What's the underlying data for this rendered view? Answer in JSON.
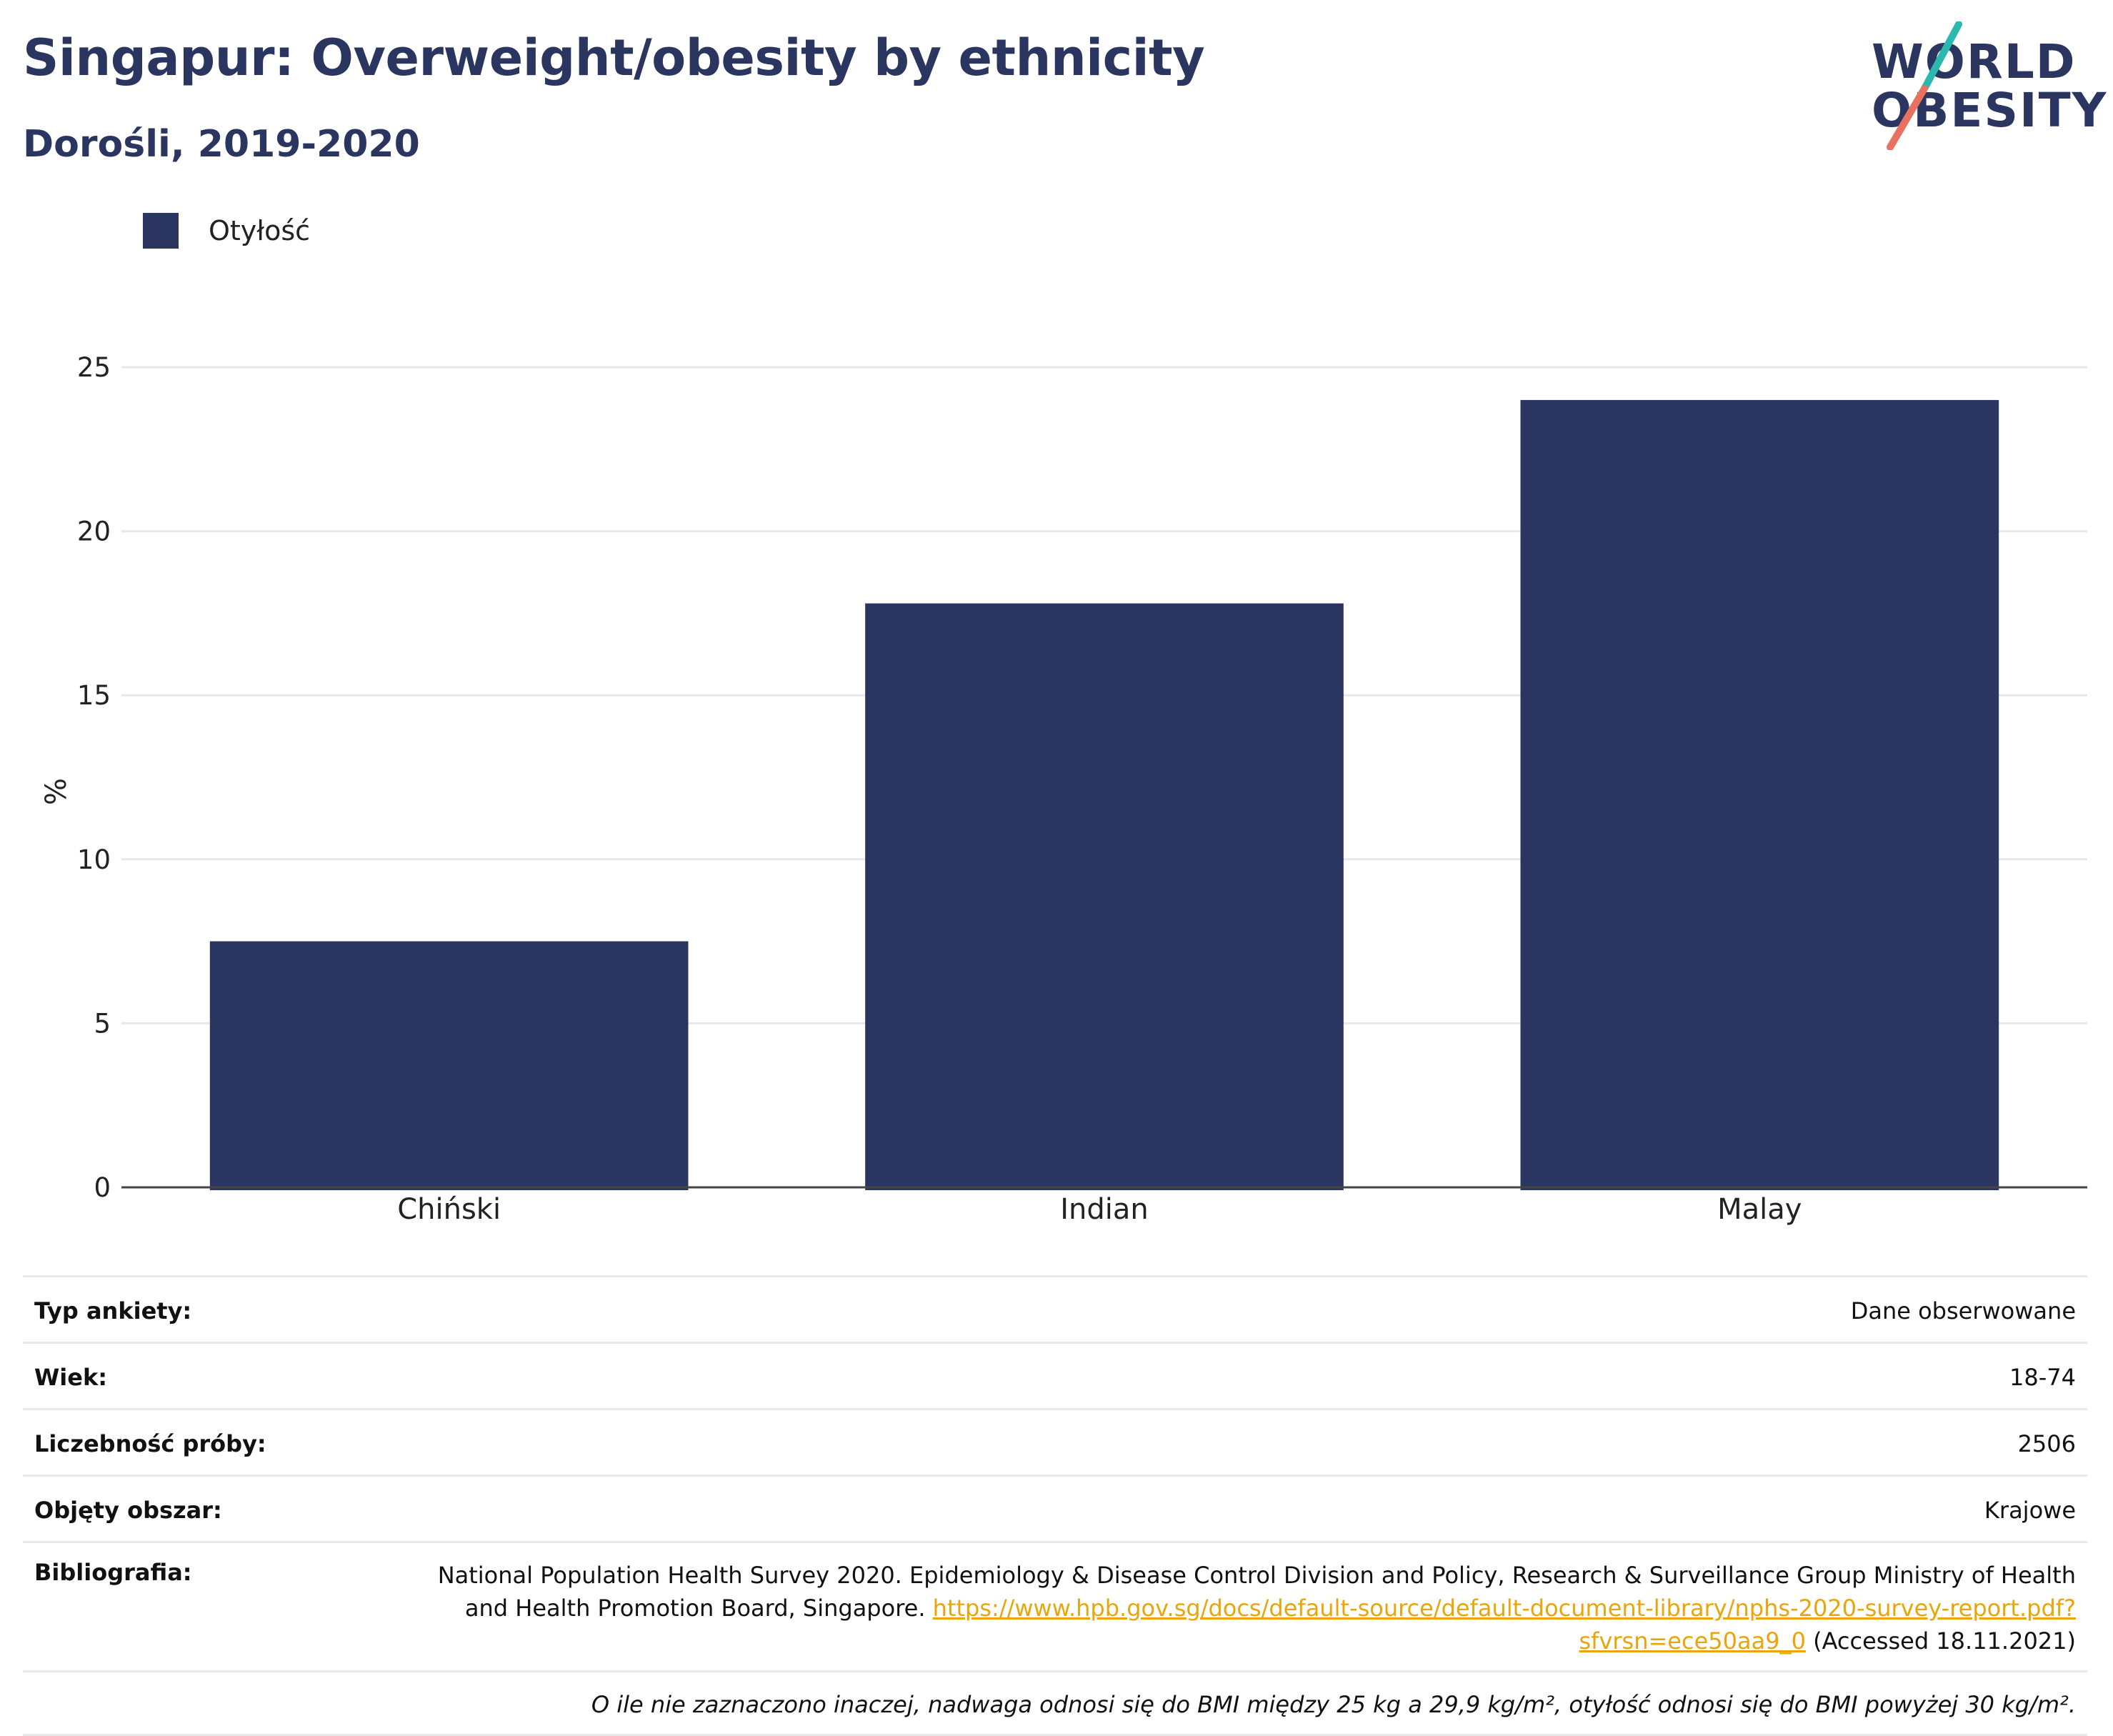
{
  "header": {
    "title": "Singapur: Overweight/obesity by ethnicity",
    "subtitle": "Dorośli, 2019-2020"
  },
  "logo": {
    "line1": "WORLD",
    "line2": "OBESITY",
    "colors": {
      "text": "#2a3560",
      "slash_top": "#2bb8b0",
      "slash_bottom": "#e8715f"
    }
  },
  "chart_data": {
    "type": "bar",
    "title": "Singapur: Overweight/obesity by ethnicity",
    "subtitle": "Dorośli, 2019-2020",
    "categories": [
      "Chiński",
      "Indian",
      "Malay"
    ],
    "series": [
      {
        "name": "Otyłość",
        "values": [
          7.5,
          17.8,
          24.0
        ],
        "color": "#2a3560"
      }
    ],
    "xlabel": "",
    "ylabel": "%",
    "ylim": [
      0,
      25
    ],
    "yticks": [
      0,
      5,
      10,
      15,
      20,
      25
    ],
    "grid": true,
    "legend": "top-left"
  },
  "info": {
    "survey_type": {
      "label": "Typ ankiety:",
      "value": "Dane obserwowane"
    },
    "age": {
      "label": "Wiek:",
      "value": "18-74"
    },
    "sample_size": {
      "label": "Liczebność próby:",
      "value": "2506"
    },
    "area": {
      "label": "Objęty obszar:",
      "value": "Krajowe"
    },
    "bibliography": {
      "label": "Bibliografia:",
      "text_before": "National Population Health Survey 2020. Epidemiology & Disease Control Division and Policy, Research & Surveillance Group Ministry of Health and Health Promotion Board, Singapore. ",
      "link": "https://www.hpb.gov.sg/docs/default-source/default-document-library/nphs-2020-survey-report.pdf?sfvrsn=ece50aa9_0",
      "text_after": " (Accessed 18.11.2021)"
    },
    "note": "O ile nie zaznaczono inaczej, nadwaga odnosi się do BMI między 25 kg a 29,9 kg/m², otyłość odnosi się do BMI powyżej 30 kg/m²."
  }
}
